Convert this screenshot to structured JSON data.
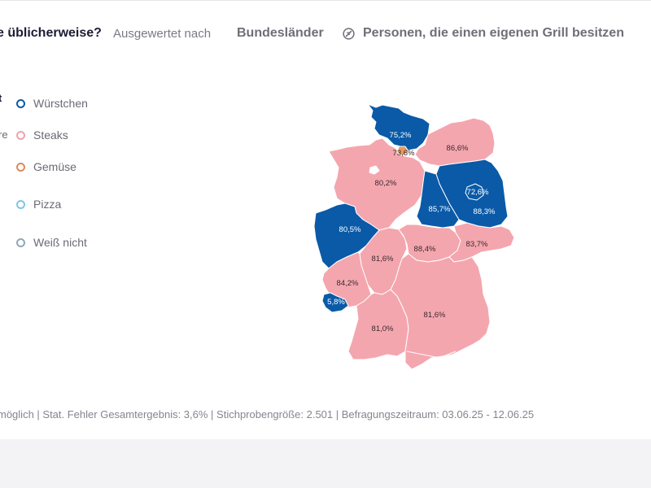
{
  "header": {
    "question": "e üblicherweise?",
    "evaluated_by": "Ausgewertet nach",
    "dimension": "Bundesländer",
    "filter_label": "Personen, die einen eigenen Grill besitzen",
    "filter_icon": "filter-slash-icon"
  },
  "legend_cutoff": {
    "top": "t",
    "second": "re"
  },
  "legend": [
    {
      "label": "Würstchen",
      "color": "#0a5aa8"
    },
    {
      "label": "Steaks",
      "color": "#f2a3ad"
    },
    {
      "label": "Gemüse",
      "color": "#e08a5a"
    },
    {
      "label": "Pizza",
      "color": "#7ec6e6"
    },
    {
      "label": "Weiß nicht",
      "color": "#8fa8b8"
    }
  ],
  "map": {
    "colors": {
      "blue": "#0a5aa8",
      "pink": "#f4a6ae",
      "orange": "#e89a5c",
      "border": "#ffffff"
    },
    "regions": [
      {
        "region": "Schleswig-Holstein",
        "category": "Würstchen",
        "value": "75,2%"
      },
      {
        "region": "Hamburg",
        "category": "Gemüse",
        "value": "73,6%"
      },
      {
        "region": "Mecklenburg-Vorpommern",
        "category": "Steaks",
        "value": "86,6%"
      },
      {
        "region": "Niedersachsen",
        "category": "Steaks",
        "value": "80,2%"
      },
      {
        "region": "Berlin",
        "category": "Würstchen",
        "value": "72,6%"
      },
      {
        "region": "Brandenburg",
        "category": "Würstchen",
        "value": "88,3%"
      },
      {
        "region": "Sachsen-Anhalt",
        "category": "Würstchen",
        "value": "85,7%"
      },
      {
        "region": "Nordrhein-Westfalen",
        "category": "Würstchen",
        "value": "80,5%"
      },
      {
        "region": "Hessen",
        "category": "Steaks",
        "value": "81,6%"
      },
      {
        "region": "Thüringen",
        "category": "Steaks",
        "value": "88,4%"
      },
      {
        "region": "Sachsen",
        "category": "Steaks",
        "value": "83,7%"
      },
      {
        "region": "Rheinland-Pfalz",
        "category": "Steaks",
        "value": "84,2%"
      },
      {
        "region": "Saarland",
        "category": "Würstchen",
        "value": "5,8%"
      },
      {
        "region": "Baden-Württemberg",
        "category": "Steaks",
        "value": "81,0%"
      },
      {
        "region": "Bayern",
        "category": "Steaks",
        "value": "81,6%"
      }
    ]
  },
  "footer": {
    "text": "möglich | Stat. Fehler Gesamtergebnis: 3,6% | Stichprobengröße: 2.501 | Befragungszeitraum: 03.06.25 - 12.06.25"
  }
}
